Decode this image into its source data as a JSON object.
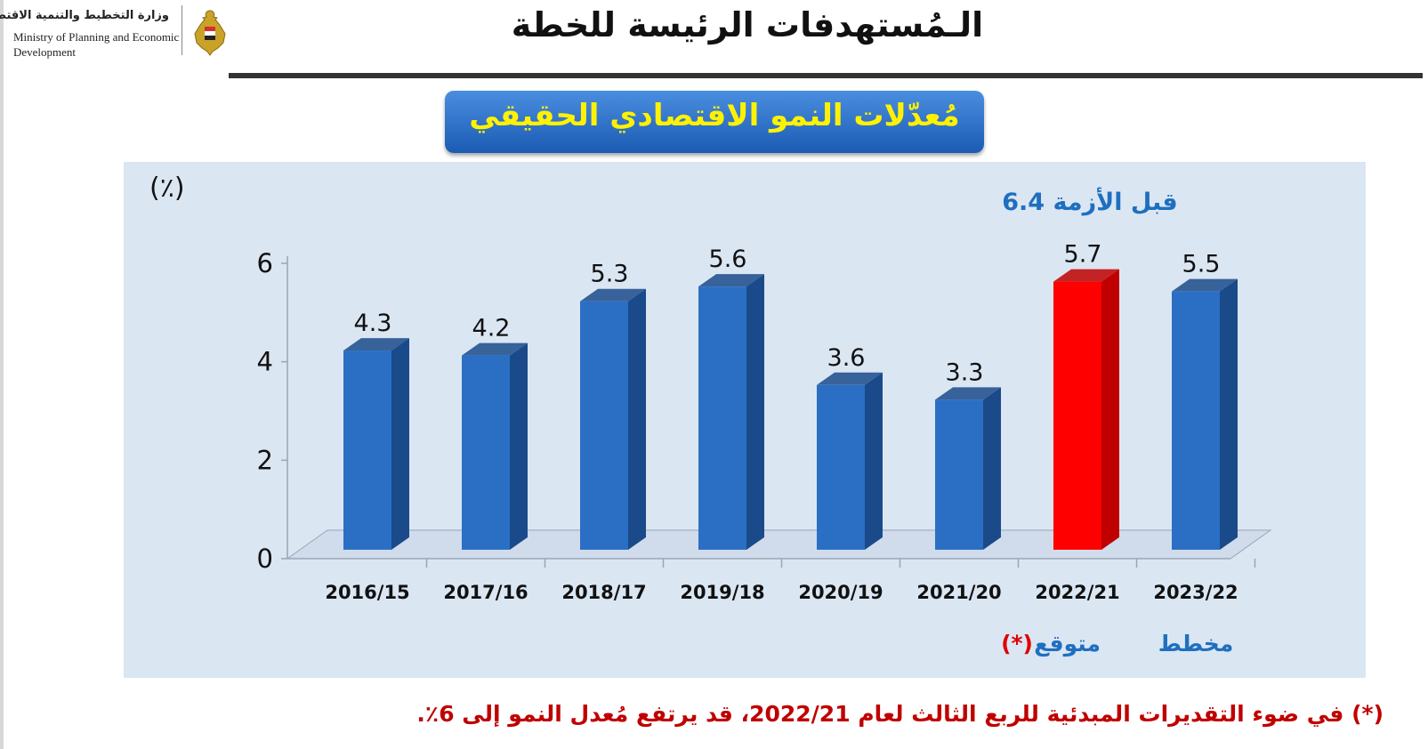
{
  "header": {
    "ministry_ar": "وزارة التخطيط والتنمية الاقتصادية",
    "ministry_en_line1": "Ministry of Planning and Economic",
    "ministry_en_line2": "Development",
    "logo_icon": "egypt-eagle-emblem-icon",
    "page_title": "الـمُستهدفات الرئيسة للخطة"
  },
  "banner": {
    "title": "مُعدّلات النمو الاقتصادي الحقيقي"
  },
  "chart_data": {
    "type": "bar",
    "unit_label": "(٪)",
    "categories": [
      "2016/15",
      "2017/16",
      "2018/17",
      "2019/18",
      "2020/19",
      "2021/20",
      "2022/21",
      "2023/22"
    ],
    "values": [
      4.3,
      4.2,
      5.3,
      5.6,
      3.6,
      3.3,
      5.7,
      5.5
    ],
    "value_labels": [
      "4.3",
      "4.2",
      "5.3",
      "5.6",
      "3.6",
      "3.3",
      "5.7",
      "5.5"
    ],
    "highlight_index": 6,
    "ylim": [
      0,
      6
    ],
    "yticks": [
      0,
      2,
      4,
      6
    ],
    "colors": {
      "bar": "#2a6fc4",
      "bar_side": "#1a4a8a",
      "highlight": "#ff0000",
      "highlight_side": "#c00000",
      "text_blue": "#1f6fc0",
      "text_red": "#e00000"
    },
    "annotations": {
      "pre_crisis_label": "قبل الأزمة",
      "pre_crisis_value": "6.4",
      "expected_label": "متوقع",
      "expected_marker": "(*)",
      "planned_label": "مخطط"
    }
  },
  "footnote": "(*) في ضوء التقديرات المبدئية للربع الثالث لعام 2022/21، قد يرتفع مُعدل النمو إلى 6٪."
}
